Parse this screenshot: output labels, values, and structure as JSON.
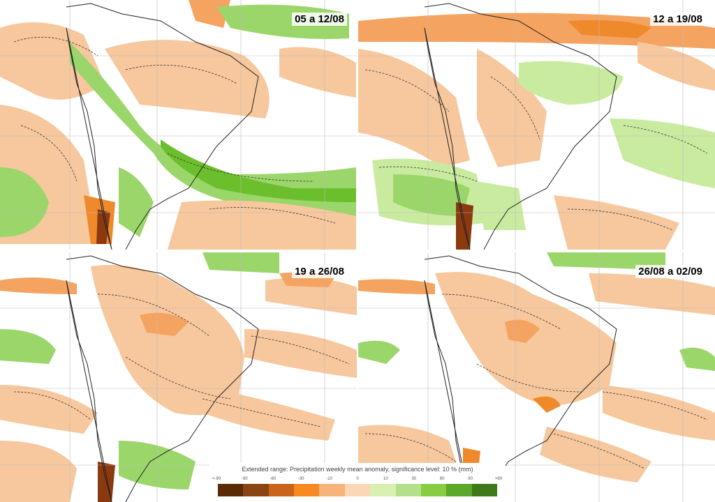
{
  "panels": [
    {
      "label": "05 a 12/08"
    },
    {
      "label": "12 a 19/08"
    },
    {
      "label": "19 a 26/08"
    },
    {
      "label": "26/08 a 02/09"
    }
  ],
  "legend": {
    "title": "Extended range: Precipitation weekly mean anomaly, significance level: 10 % (mm)",
    "ticks": [
      "<-90",
      "-90",
      "-60",
      "-30",
      "-10",
      "0",
      "10",
      "30",
      "60",
      "90",
      ">90"
    ],
    "colors": [
      "#5a2a06",
      "#8b4513",
      "#c8651a",
      "#f68a21",
      "#f7b47a",
      "#fbd7b5",
      "#d8f0b0",
      "#b3e08a",
      "#88cc44",
      "#5ca82a",
      "#3d7a1a"
    ]
  },
  "colors": {
    "negative_light": "#f7c79d",
    "negative_mid": "#f4a460",
    "negative_strong": "#ef8a2c",
    "negative_extreme": "#8b3a10",
    "positive_light": "#c8eba0",
    "positive_mid": "#9bd66a",
    "positive_strong": "#6cbf2c",
    "coast": "#222222",
    "grid": "#bbbbbb"
  }
}
